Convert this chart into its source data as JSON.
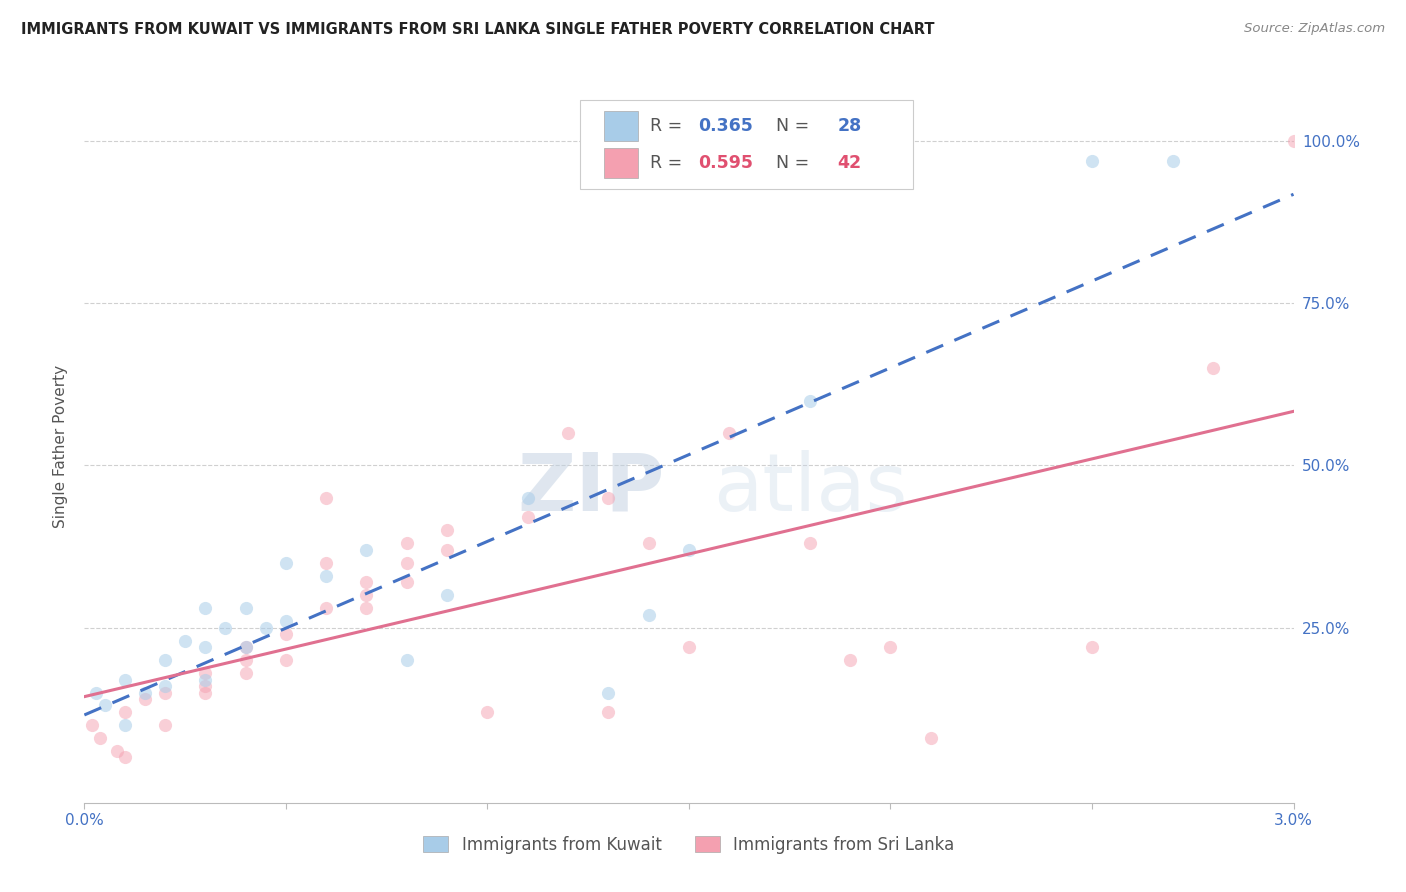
{
  "title": "IMMIGRANTS FROM KUWAIT VS IMMIGRANTS FROM SRI LANKA SINGLE FATHER POVERTY CORRELATION CHART",
  "source": "Source: ZipAtlas.com",
  "ylabel": "Single Father Poverty",
  "xlim": [
    0.0,
    0.03
  ],
  "ylim": [
    -0.02,
    1.08
  ],
  "ytick_values": [
    0.25,
    0.5,
    0.75,
    1.0
  ],
  "ytick_labels": [
    "25.0%",
    "50.0%",
    "75.0%",
    "100.0%"
  ],
  "xtick_values": [
    0.0,
    0.005,
    0.01,
    0.015,
    0.02,
    0.025,
    0.03
  ],
  "xtick_labels": [
    "0.0%",
    "",
    "",
    "",
    "",
    "",
    "3.0%"
  ],
  "legend_blue_R": "0.365",
  "legend_blue_N": "28",
  "legend_pink_R": "0.595",
  "legend_pink_N": "42",
  "legend_kuwait": "Immigrants from Kuwait",
  "legend_srilanka": "Immigrants from Sri Lanka",
  "blue_scatter_color": "#a8cce8",
  "pink_scatter_color": "#f4a0b0",
  "blue_line_color": "#4472c4",
  "pink_line_color": "#e07090",
  "watermark_zip": "ZIP",
  "watermark_atlas": "atlas",
  "scatter_size": 90,
  "blue_alpha": 0.55,
  "pink_alpha": 0.5,
  "kuwait_x": [
    0.0003,
    0.0005,
    0.001,
    0.001,
    0.0015,
    0.002,
    0.002,
    0.0025,
    0.003,
    0.003,
    0.003,
    0.0035,
    0.004,
    0.004,
    0.0045,
    0.005,
    0.005,
    0.006,
    0.007,
    0.008,
    0.009,
    0.011,
    0.013,
    0.014,
    0.015,
    0.018,
    0.025,
    0.027
  ],
  "kuwait_y": [
    0.15,
    0.13,
    0.1,
    0.17,
    0.15,
    0.2,
    0.16,
    0.23,
    0.22,
    0.28,
    0.17,
    0.25,
    0.22,
    0.28,
    0.25,
    0.26,
    0.35,
    0.33,
    0.37,
    0.2,
    0.3,
    0.45,
    0.15,
    0.27,
    0.37,
    0.6,
    0.97,
    0.97
  ],
  "srilanka_x": [
    0.0002,
    0.0004,
    0.0008,
    0.001,
    0.001,
    0.0015,
    0.002,
    0.002,
    0.003,
    0.003,
    0.003,
    0.004,
    0.004,
    0.004,
    0.005,
    0.005,
    0.006,
    0.006,
    0.006,
    0.007,
    0.007,
    0.007,
    0.008,
    0.008,
    0.008,
    0.009,
    0.009,
    0.01,
    0.011,
    0.012,
    0.013,
    0.013,
    0.014,
    0.015,
    0.016,
    0.018,
    0.019,
    0.02,
    0.021,
    0.025,
    0.028,
    0.03
  ],
  "srilanka_y": [
    0.1,
    0.08,
    0.06,
    0.12,
    0.05,
    0.14,
    0.15,
    0.1,
    0.16,
    0.18,
    0.15,
    0.2,
    0.22,
    0.18,
    0.24,
    0.2,
    0.35,
    0.45,
    0.28,
    0.3,
    0.32,
    0.28,
    0.35,
    0.38,
    0.32,
    0.4,
    0.37,
    0.12,
    0.42,
    0.55,
    0.12,
    0.45,
    0.38,
    0.22,
    0.55,
    0.38,
    0.2,
    0.22,
    0.08,
    0.22,
    0.65,
    1.0
  ]
}
